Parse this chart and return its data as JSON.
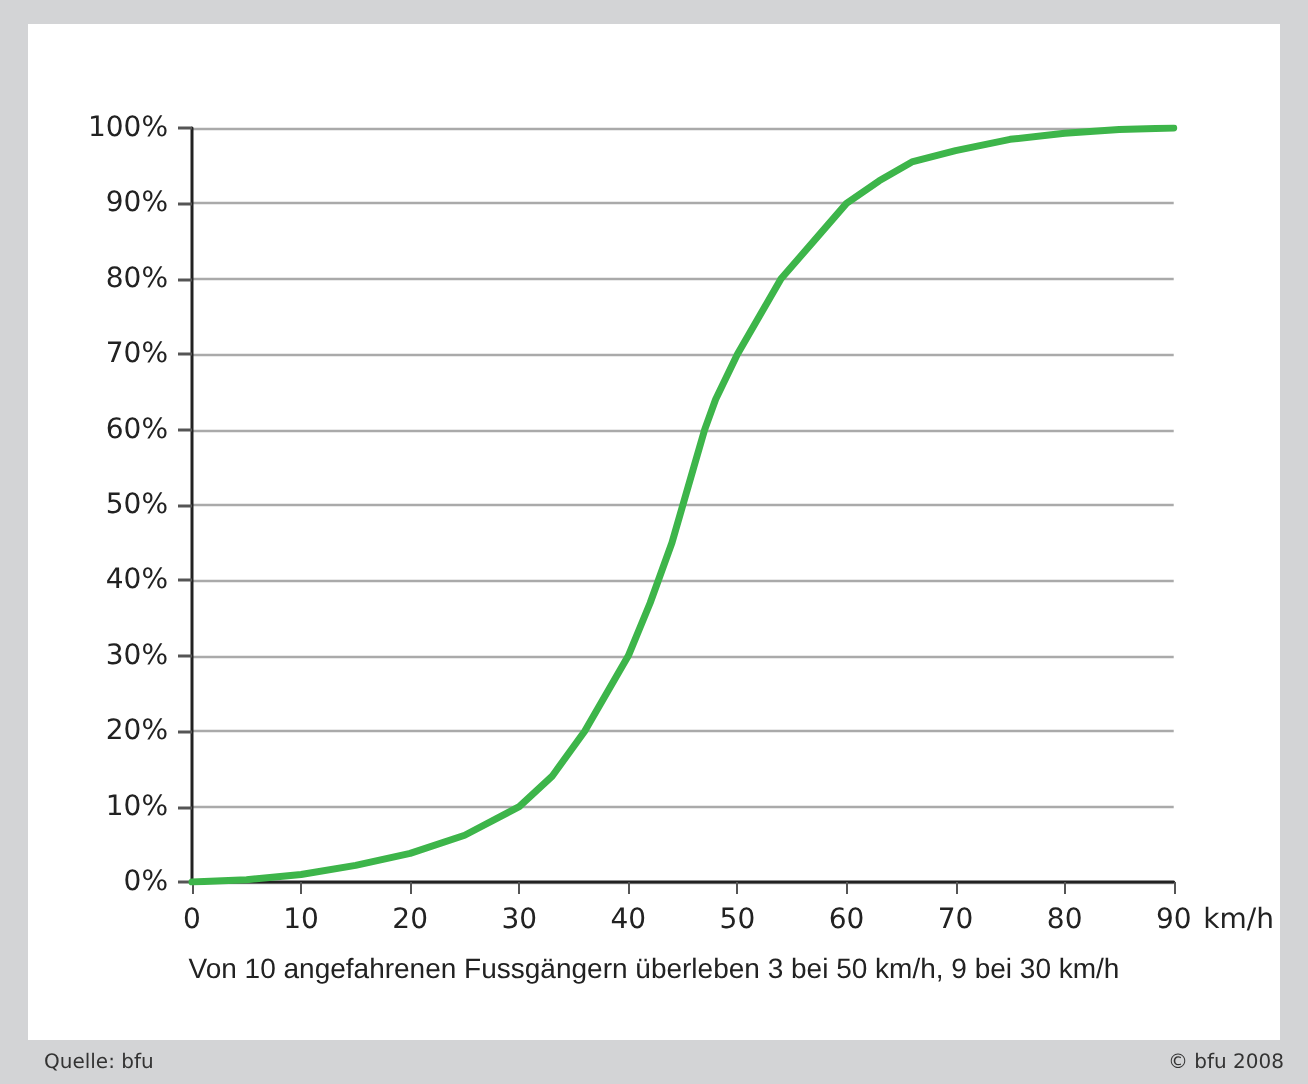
{
  "chart_data": {
    "type": "line",
    "xlabel": "km/h",
    "x": [
      0,
      5,
      10,
      15,
      20,
      25,
      30,
      33,
      36,
      38,
      40,
      42,
      44,
      46,
      47,
      48,
      50,
      52,
      54,
      57,
      60,
      63,
      66,
      70,
      75,
      80,
      85,
      90
    ],
    "series": [
      {
        "color": "#3db54a",
        "values": [
          0,
          0.3,
          1,
          2.2,
          3.8,
          6.2,
          10,
          14,
          20,
          25,
          30,
          37,
          45,
          55,
          60,
          64,
          70,
          75,
          80,
          85,
          90,
          93,
          95.5,
          97,
          98.5,
          99.3,
          99.8,
          100
        ]
      }
    ],
    "xlim": [
      0,
      90
    ],
    "xticks": [
      0,
      10,
      20,
      30,
      40,
      50,
      60,
      70,
      80,
      90
    ],
    "ylim": [
      0,
      100
    ],
    "yticks": [
      {
        "value": 0,
        "label": "0%"
      },
      {
        "value": 10,
        "label": "10%"
      },
      {
        "value": 20,
        "label": "20%"
      },
      {
        "value": 30,
        "label": "30%"
      },
      {
        "value": 40,
        "label": "40%"
      },
      {
        "value": 50,
        "label": "50%"
      },
      {
        "value": 60,
        "label": "60%"
      },
      {
        "value": 70,
        "label": "70%"
      },
      {
        "value": 80,
        "label": "80%"
      },
      {
        "value": 90,
        "label": "90%"
      },
      {
        "value": 100,
        "label": "100%"
      }
    ],
    "grid": "y",
    "marker": "none",
    "line_style": "solid",
    "annotations": [
      "Von 10 angefahrenen Fussgängern überleben 3 bei 50 km/h, 9 bei 30 km/h",
      "Quelle: bfu",
      "© bfu 2008"
    ]
  }
}
